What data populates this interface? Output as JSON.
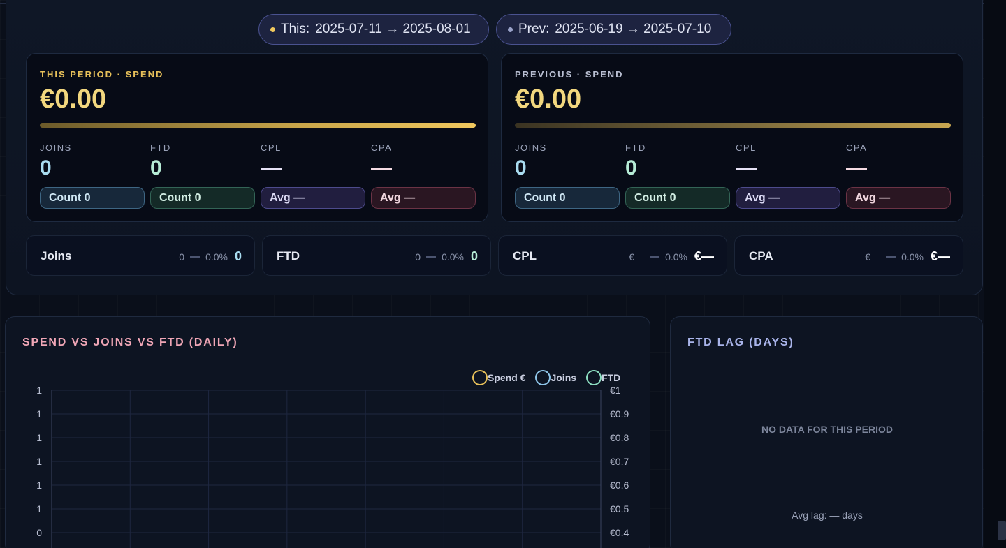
{
  "period": {
    "this_prefix": "This:",
    "this_range": "2025-07-11 → 2025-08-01",
    "prev_prefix": "Prev:",
    "prev_range": "2025-06-19 → 2025-07-10"
  },
  "cards": {
    "this": {
      "label": "THIS PERIOD · SPEND",
      "spend": "€0.00",
      "metrics": {
        "joins": {
          "label": "JOINS",
          "value": "0",
          "badge": "Count 0"
        },
        "ftd": {
          "label": "FTD",
          "value": "0",
          "badge": "Count 0"
        },
        "cpl": {
          "label": "CPL",
          "value": "—",
          "badge": "Avg —"
        },
        "cpa": {
          "label": "CPA",
          "value": "—",
          "badge": "Avg —"
        }
      }
    },
    "prev": {
      "label": "PREVIOUS · SPEND",
      "spend": "€0.00",
      "metrics": {
        "joins": {
          "label": "JOINS",
          "value": "0",
          "badge": "Count 0"
        },
        "ftd": {
          "label": "FTD",
          "value": "0",
          "badge": "Count 0"
        },
        "cpl": {
          "label": "CPL",
          "value": "—",
          "badge": "Avg —"
        },
        "cpa": {
          "label": "CPA",
          "value": "—",
          "badge": "Avg —"
        }
      }
    }
  },
  "comparison": [
    {
      "label": "Joins",
      "prev": "0",
      "delta": "0.0%",
      "value": "0",
      "color": "#a9dcf0"
    },
    {
      "label": "FTD",
      "prev": "0",
      "delta": "0.0%",
      "value": "0",
      "color": "#b6ecd6"
    },
    {
      "label": "CPL",
      "prev": "€—",
      "delta": "0.0%",
      "value": "€—",
      "color": "#ffffff"
    },
    {
      "label": "CPA",
      "prev": "€—",
      "delta": "0.0%",
      "value": "€—",
      "color": "#ffffff"
    }
  ],
  "chart": {
    "title": "SPEND VS JOINS VS FTD (DAILY)",
    "legend": [
      {
        "name": "Spend €",
        "color": "#e8c15a"
      },
      {
        "name": "Joins",
        "color": "#8fc6ea"
      },
      {
        "name": "FTD",
        "color": "#8ee0c2"
      }
    ]
  },
  "chart_data": {
    "type": "line",
    "title": "SPEND VS JOINS VS FTD (DAILY)",
    "series": [
      {
        "name": "Spend €",
        "values": []
      },
      {
        "name": "Joins",
        "values": []
      },
      {
        "name": "FTD",
        "values": []
      }
    ],
    "left_axis_ticks": [
      "1",
      "1",
      "1",
      "1",
      "1",
      "1",
      "0"
    ],
    "right_axis_ticks": [
      "€1",
      "€0.9",
      "€0.8",
      "€0.7",
      "€0.6",
      "€0.5",
      "€0.4"
    ],
    "grid": true,
    "legend_position": "top-right"
  },
  "lag": {
    "title": "FTD LAG (DAYS)",
    "empty": "NO DATA FOR THIS PERIOD",
    "avg": "Avg lag: — days"
  }
}
